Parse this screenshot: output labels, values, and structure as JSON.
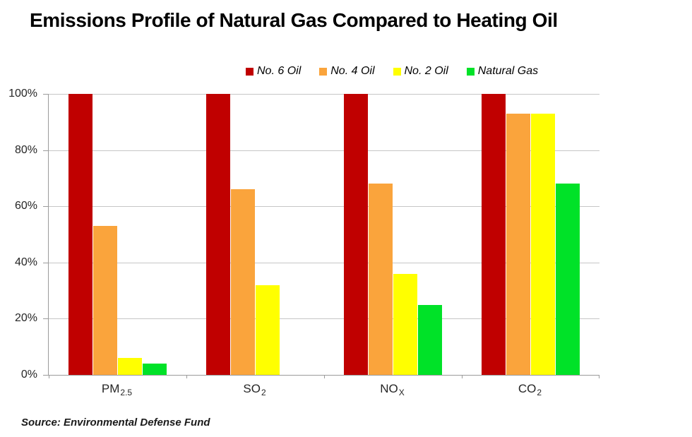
{
  "source": "Source: Environmental Defense Fund",
  "chart_data": {
    "type": "bar",
    "title": "Emissions Profile of Natural Gas Compared to Heating Oil",
    "xlabel": "",
    "ylabel": "",
    "ylim": [
      0,
      100
    ],
    "grid": true,
    "legend_position": "top",
    "categories": [
      {
        "name": "PM2.5",
        "base": "PM",
        "sub": "2.5"
      },
      {
        "name": "SO2",
        "base": "SO",
        "sub": "2"
      },
      {
        "name": "NOX",
        "base": "NO",
        "sub": "X"
      },
      {
        "name": "CO2",
        "base": "CO",
        "sub": "2"
      }
    ],
    "series": [
      {
        "name": "No. 6 Oil",
        "color": "#C00000",
        "values": [
          100,
          100,
          100,
          100
        ]
      },
      {
        "name": "No. 4 Oil",
        "color": "#FAA43C",
        "values": [
          53,
          66,
          68,
          93
        ]
      },
      {
        "name": "No. 2 Oil",
        "color": "#FFFF00",
        "values": [
          6,
          32,
          36,
          93
        ]
      },
      {
        "name": "Natural Gas",
        "color": "#00E228",
        "values": [
          4,
          0,
          25,
          68
        ]
      }
    ],
    "y_ticks": [
      {
        "value": 0,
        "label": "0%"
      },
      {
        "value": 20,
        "label": "20%"
      },
      {
        "value": 40,
        "label": "40%"
      },
      {
        "value": 60,
        "label": "60%"
      },
      {
        "value": 80,
        "label": "80%"
      },
      {
        "value": 100,
        "label": "100%"
      }
    ]
  }
}
